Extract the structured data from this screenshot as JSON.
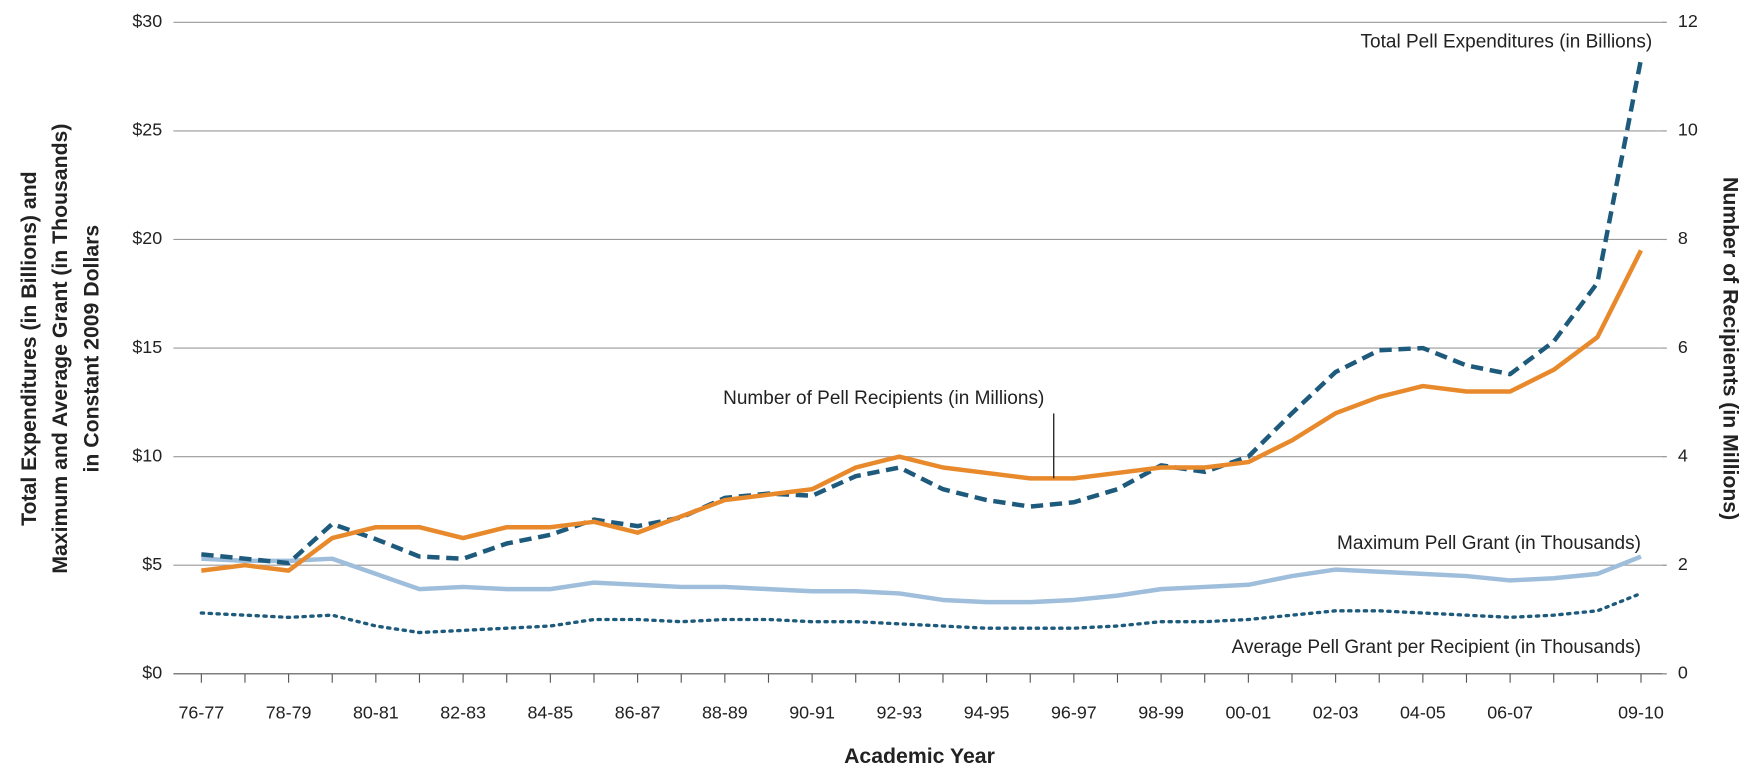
{
  "chart_data": {
    "type": "line",
    "xlabel": "Academic Year",
    "ylabel": [
      "Total Expenditures (in Billions) and",
      "Maximum and Average Grant (in Thousands)",
      "in Constant 2009 Dollars"
    ],
    "y2label": "Number of Recipients (in Millions)",
    "categories": [
      "76-77",
      null,
      "78-79",
      null,
      "80-81",
      null,
      "82-83",
      null,
      "84-85",
      null,
      "86-87",
      null,
      "88-89",
      null,
      "90-91",
      null,
      "92-93",
      null,
      "94-95",
      null,
      "96-97",
      null,
      "98-99",
      null,
      "00-01",
      null,
      "02-03",
      null,
      "04-05",
      null,
      "06-07",
      null,
      null,
      "09-10"
    ],
    "ylim": [
      0,
      30
    ],
    "yticks": [
      {
        "value": 0,
        "label": "$0"
      },
      {
        "value": 5,
        "label": "$5"
      },
      {
        "value": 10,
        "label": "$10"
      },
      {
        "value": 15,
        "label": "$15"
      },
      {
        "value": 20,
        "label": "$20"
      },
      {
        "value": 25,
        "label": "$25"
      },
      {
        "value": 30,
        "label": "$30"
      }
    ],
    "y2lim": [
      0,
      12
    ],
    "y2ticks": [
      0,
      2,
      4,
      6,
      8,
      10,
      12
    ],
    "grid": true,
    "series": [
      {
        "name": "Total Pell Expenditures (in Billions)",
        "color": "#1d5a7c",
        "style": "dashed",
        "values": [
          5.5,
          5.3,
          5.1,
          6.9,
          6.2,
          5.4,
          5.3,
          6.0,
          6.4,
          7.1,
          6.8,
          7.2,
          8.1,
          8.3,
          8.2,
          9.1,
          9.5,
          8.5,
          8.0,
          7.7,
          7.9,
          8.5,
          9.6,
          9.3,
          10.0,
          12.0,
          13.9,
          14.9,
          15.0,
          14.2,
          13.8,
          15.3,
          18.0,
          28.3
        ]
      },
      {
        "name": "Number of Pell Recipients (in Millions)",
        "color": "#e8892b",
        "style": "solid",
        "axis": "y2",
        "values": [
          1.9,
          2.0,
          1.9,
          2.5,
          2.7,
          2.7,
          2.5,
          2.7,
          2.7,
          2.8,
          2.6,
          2.9,
          3.2,
          3.3,
          3.4,
          3.8,
          4.0,
          3.8,
          3.7,
          3.6,
          3.6,
          3.7,
          3.8,
          3.8,
          3.9,
          4.3,
          4.8,
          5.1,
          5.3,
          5.2,
          5.2,
          5.6,
          6.2,
          7.8
        ]
      },
      {
        "name": "Maximum Pell Grant (in Thousands)",
        "color": "#9fbedb",
        "style": "solid",
        "values": [
          5.3,
          5.2,
          5.2,
          5.3,
          4.6,
          3.9,
          4.0,
          3.9,
          3.9,
          4.2,
          4.1,
          4.0,
          4.0,
          3.9,
          3.8,
          3.8,
          3.7,
          3.4,
          3.3,
          3.3,
          3.4,
          3.6,
          3.9,
          4.0,
          4.1,
          4.5,
          4.8,
          4.7,
          4.6,
          4.5,
          4.3,
          4.4,
          4.6,
          5.4
        ]
      },
      {
        "name": "Average Pell Grant per Recipient (in Thousands)",
        "color": "#1d5a7c",
        "style": "dotted",
        "values": [
          2.8,
          2.7,
          2.6,
          2.7,
          2.2,
          1.9,
          2.0,
          2.1,
          2.2,
          2.5,
          2.5,
          2.4,
          2.5,
          2.5,
          2.4,
          2.4,
          2.3,
          2.2,
          2.1,
          2.1,
          2.1,
          2.2,
          2.4,
          2.4,
          2.5,
          2.7,
          2.9,
          2.9,
          2.8,
          2.7,
          2.6,
          2.7,
          2.9,
          3.7
        ]
      }
    ]
  }
}
